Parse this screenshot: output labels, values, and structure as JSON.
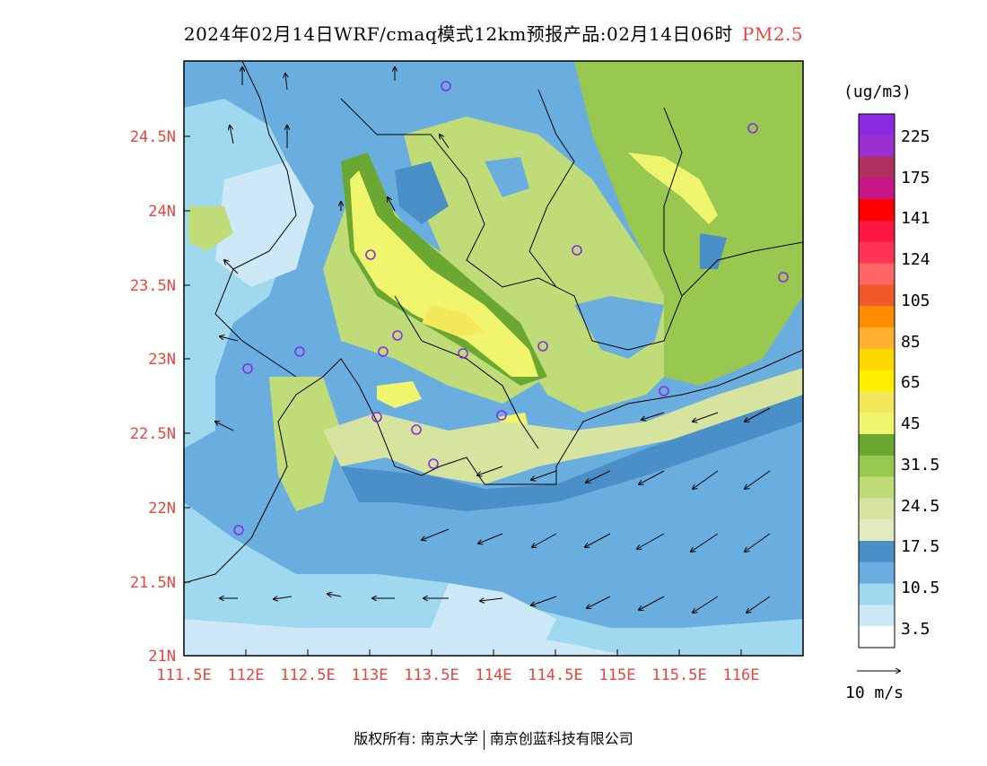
{
  "title": {
    "main": "2024年02月14日WRF/cmaq模式12km预报产品:02月14日06时",
    "variable": "PM2.5"
  },
  "axes": {
    "lon_labels": [
      "111.5E",
      "112E",
      "112.5E",
      "113E",
      "113.5E",
      "114E",
      "114.5E",
      "115E",
      "115.5E",
      "116E"
    ],
    "lat_labels": [
      "24.5N",
      "24N",
      "23.5N",
      "23N",
      "22.5N",
      "22N",
      "21.5N",
      "21N"
    ]
  },
  "colorbar": {
    "unit": "(ug/m3)",
    "labels": [
      "225",
      "175",
      "141",
      "124",
      "105",
      "85",
      "65",
      "45",
      "31.5",
      "24.5",
      "17.5",
      "10.5",
      "3.5"
    ],
    "colors_top_to_bottom": [
      "#8a2be2",
      "#9b30d0",
      "#b03060",
      "#c71585",
      "#ff0000",
      "#ff1744",
      "#ff3355",
      "#ff6666",
      "#f05a28",
      "#ff8c00",
      "#ffb02e",
      "#ffd700",
      "#ffee00",
      "#f2e85a",
      "#f0f56e",
      "#6aa832",
      "#98c850",
      "#c0dc78",
      "#d6e4a0",
      "#e0ebc0",
      "#4a8fc8",
      "#6aaee0",
      "#a0d8f0",
      "#cde9f7",
      "#ffffff"
    ],
    "wind_ref": "10 m/s"
  },
  "footer": {
    "left": "版权所有: 南京大学",
    "right": "南京创蓝科技有限公司"
  },
  "colors": {
    "accent": "#e8463c",
    "station": "#8a2be2"
  }
}
